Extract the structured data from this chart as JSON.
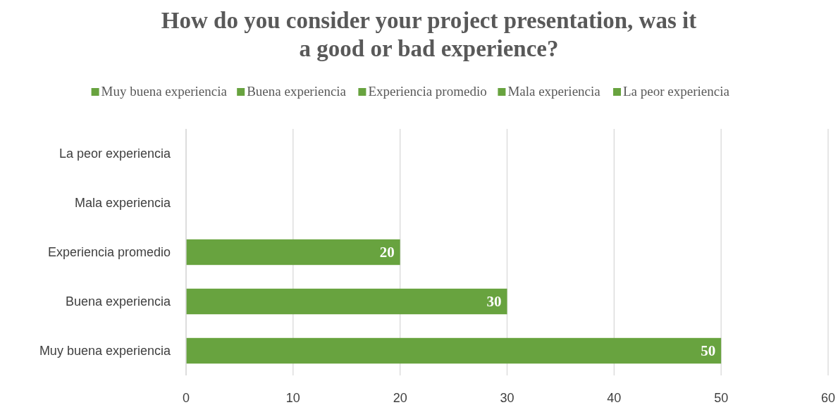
{
  "chart_data": {
    "type": "bar",
    "orientation": "horizontal",
    "stacked": true,
    "title": "How do you consider your project presentation, was it a good or bad experience?",
    "categories": [
      "La peor experiencia",
      "Mala experiencia",
      "Experiencia promedio",
      "Buena experiencia",
      "Muy buena experiencia"
    ],
    "series": [
      {
        "name": "Muy buena experiencia",
        "color": "#68a33f",
        "values": [
          null,
          null,
          null,
          null,
          50
        ],
        "value_labels": [
          null,
          null,
          null,
          null,
          "50"
        ]
      },
      {
        "name": "Buena experiencia",
        "color": "#68a33f",
        "values": [
          null,
          null,
          null,
          30,
          null
        ],
        "value_labels": [
          null,
          null,
          null,
          "30",
          null
        ]
      },
      {
        "name": "Experiencia promedio",
        "color": "#68a33f",
        "values": [
          null,
          null,
          20,
          null,
          null
        ],
        "value_labels": [
          null,
          null,
          "20",
          null,
          null
        ]
      },
      {
        "name": "Mala experiencia",
        "color": "#68a33f",
        "values": [
          null,
          0,
          null,
          null,
          null
        ],
        "value_labels": [
          null,
          null,
          null,
          null,
          null
        ]
      },
      {
        "name": "La peor experiencia",
        "color": "#68a33f",
        "values": [
          0,
          null,
          null,
          null,
          null
        ],
        "value_labels": [
          null,
          null,
          null,
          null,
          null
        ]
      }
    ],
    "xlim": [
      0,
      60
    ],
    "xticks": [
      0,
      10,
      20,
      30,
      40,
      50,
      60
    ],
    "grid": "x",
    "legend": "top"
  }
}
